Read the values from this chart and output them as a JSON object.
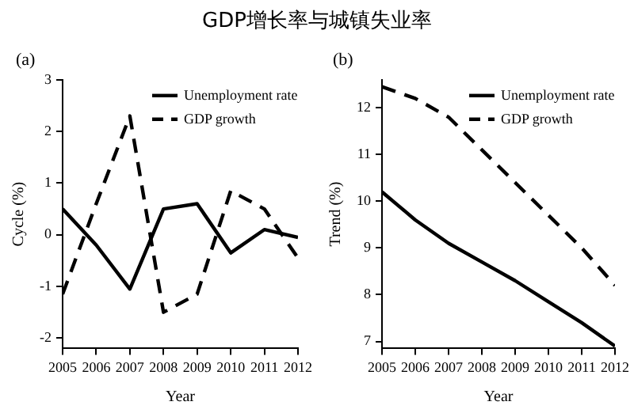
{
  "chart_data": [
    {
      "type": "line",
      "title": "GDP增长率与城镇失业率",
      "subtitle": "(a)",
      "xlabel": "Year",
      "ylabel": "Cycle (%)",
      "x": [
        2005,
        2006,
        2007,
        2008,
        2009,
        2010,
        2011,
        2012
      ],
      "xlim": [
        2005,
        2012
      ],
      "xticks": [
        2005,
        2006,
        2007,
        2008,
        2009,
        2010,
        2011,
        2012
      ],
      "ylim": [
        -2.2,
        3
      ],
      "yticks": [
        -2,
        -1,
        0,
        1,
        2,
        3
      ],
      "grid": false,
      "legend": "top right",
      "marker": "none",
      "series": [
        {
          "name": "Unemployment rate",
          "color": "#000000",
          "line_style": "solid",
          "values": [
            0.5,
            -0.2,
            -1.05,
            0.5,
            0.6,
            -0.35,
            0.1,
            -0.05
          ]
        },
        {
          "name": "GDP growth",
          "color": "#000000",
          "line_style": "dashed",
          "values": [
            -1.15,
            0.6,
            2.3,
            -1.5,
            -1.15,
            0.85,
            0.5,
            -0.45
          ]
        }
      ]
    },
    {
      "type": "line",
      "subtitle": "(b)",
      "xlabel": "Year",
      "ylabel": "Trend (%)",
      "x": [
        2005,
        2006,
        2007,
        2008,
        2009,
        2010,
        2011,
        2012
      ],
      "xlim": [
        2005,
        2012
      ],
      "xticks": [
        2005,
        2006,
        2007,
        2008,
        2009,
        2010,
        2011,
        2012
      ],
      "ylim": [
        6.85,
        12.6
      ],
      "yticks": [
        7,
        8,
        9,
        10,
        11,
        12
      ],
      "grid": false,
      "legend": "top right",
      "marker": "none",
      "series": [
        {
          "name": "Unemployment rate",
          "color": "#000000",
          "line_style": "solid",
          "values": [
            10.2,
            9.6,
            9.1,
            8.7,
            8.3,
            7.85,
            7.4,
            6.9
          ]
        },
        {
          "name": "GDP growth",
          "color": "#000000",
          "line_style": "dashed",
          "values": [
            12.45,
            12.2,
            11.8,
            11.1,
            10.4,
            9.7,
            9.0,
            8.2
          ]
        }
      ]
    }
  ]
}
